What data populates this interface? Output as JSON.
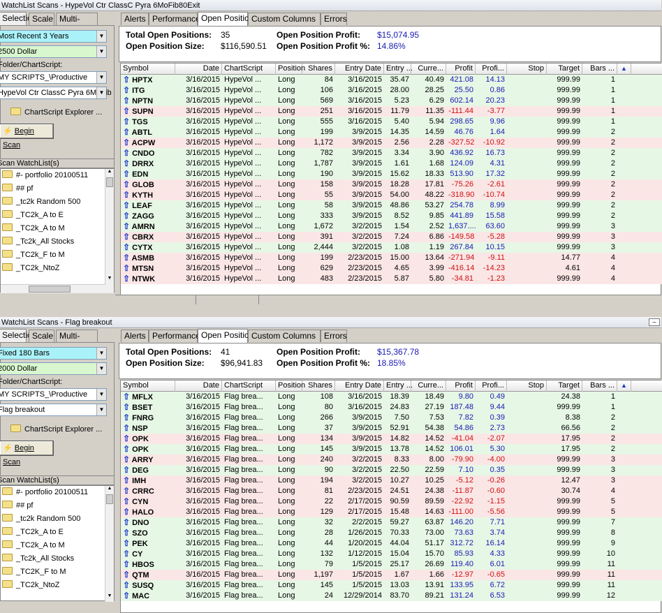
{
  "panes": [
    {
      "title": "WatchList Scans - HypeVol Ctr ClassC Pyra 6MoFib80Exit",
      "left_tabs": [
        "Selection",
        "Scale",
        "Multi-Scan"
      ],
      "bars_combo": "Most Recent 3 Years",
      "position_combo": "2500 Dollar",
      "folder_label": "Folder/ChartScript:",
      "folder_combo": "MY SCRIPTS_\\Productive",
      "script_combo": "HypeVol Ctr ClassC Pyra 6MoFib",
      "explorer_label": "ChartScript Explorer ...",
      "scan_label": "Begin Scan",
      "watchlist_header": "Scan WatchList(s)",
      "watchlists": [
        "#- portfolio 20100511",
        "## pf",
        "_tc2k Random 500",
        "_TC2k_A to E",
        "_TC2k_A to M",
        "_Tc2k_All Stocks",
        "_TC2k_F to M",
        "_TC2k_NtoZ"
      ],
      "tabs": [
        "Alerts",
        "Performance",
        "Open Positions",
        "Custom Columns",
        "Errors"
      ],
      "summary": {
        "tot_label": "Total Open Positions:",
        "tot": "35",
        "size_label": "Open Position Size:",
        "size": "$116,590.51",
        "profit_label": "Open Position Profit:",
        "profit": "$15,074.95",
        "pct_label": "Open Position Profit %:",
        "pct": "14.86%"
      },
      "columns": [
        "Symbol",
        "Date",
        "ChartScript",
        "Position",
        "Shares",
        "Entry Date",
        "Entry ...",
        "Curre...",
        "Profit",
        "Profi...",
        "Stop",
        "Target",
        "Bars ..."
      ],
      "rows": [
        [
          "HPTX",
          "3/16/2015",
          "HypeVol ...",
          "Long",
          "84",
          "3/16/2015",
          "35.47",
          "40.49",
          "421.08",
          "14.13",
          "",
          "999.99",
          "1"
        ],
        [
          "ITG",
          "3/16/2015",
          "HypeVol ...",
          "Long",
          "106",
          "3/16/2015",
          "28.00",
          "28.25",
          "25.50",
          "0.86",
          "",
          "999.99",
          "1"
        ],
        [
          "NPTN",
          "3/16/2015",
          "HypeVol ...",
          "Long",
          "569",
          "3/16/2015",
          "5.23",
          "6.29",
          "602.14",
          "20.23",
          "",
          "999.99",
          "1"
        ],
        [
          "SUPN",
          "3/16/2015",
          "HypeVol ...",
          "Long",
          "251",
          "3/16/2015",
          "11.79",
          "11.35",
          "-111.44",
          "-3.77",
          "",
          "999.99",
          "1"
        ],
        [
          "TGS",
          "3/16/2015",
          "HypeVol ...",
          "Long",
          "555",
          "3/16/2015",
          "5.40",
          "5.94",
          "298.65",
          "9.96",
          "",
          "999.99",
          "1"
        ],
        [
          "ABTL",
          "3/16/2015",
          "HypeVol ...",
          "Long",
          "199",
          "3/9/2015",
          "14.35",
          "14.59",
          "46.76",
          "1.64",
          "",
          "999.99",
          "2"
        ],
        [
          "ACPW",
          "3/16/2015",
          "HypeVol ...",
          "Long",
          "1,172",
          "3/9/2015",
          "2.56",
          "2.28",
          "-327.52",
          "-10.92",
          "",
          "999.99",
          "2"
        ],
        [
          "CNDO",
          "3/16/2015",
          "HypeVol ...",
          "Long",
          "782",
          "3/9/2015",
          "3.34",
          "3.90",
          "436.92",
          "16.73",
          "",
          "999.99",
          "2"
        ],
        [
          "DRRX",
          "3/16/2015",
          "HypeVol ...",
          "Long",
          "1,787",
          "3/9/2015",
          "1.61",
          "1.68",
          "124.09",
          "4.31",
          "",
          "999.99",
          "2"
        ],
        [
          "EDN",
          "3/16/2015",
          "HypeVol ...",
          "Long",
          "190",
          "3/9/2015",
          "15.62",
          "18.33",
          "513.90",
          "17.32",
          "",
          "999.99",
          "2"
        ],
        [
          "GLOB",
          "3/16/2015",
          "HypeVol ...",
          "Long",
          "158",
          "3/9/2015",
          "18.28",
          "17.81",
          "-75.26",
          "-2.61",
          "",
          "999.99",
          "2"
        ],
        [
          "KYTH",
          "3/16/2015",
          "HypeVol ...",
          "Long",
          "55",
          "3/9/2015",
          "54.00",
          "48.22",
          "-318.90",
          "-10.74",
          "",
          "999.99",
          "2"
        ],
        [
          "LEAF",
          "3/16/2015",
          "HypeVol ...",
          "Long",
          "58",
          "3/9/2015",
          "48.86",
          "53.27",
          "254.78",
          "8.99",
          "",
          "999.99",
          "2"
        ],
        [
          "ZAGG",
          "3/16/2015",
          "HypeVol ...",
          "Long",
          "333",
          "3/9/2015",
          "8.52",
          "9.85",
          "441.89",
          "15.58",
          "",
          "999.99",
          "2"
        ],
        [
          "AMRN",
          "3/16/2015",
          "HypeVol ...",
          "Long",
          "1,672",
          "3/2/2015",
          "1.54",
          "2.52",
          "1,637....",
          "63.60",
          "",
          "999.99",
          "3"
        ],
        [
          "CBRX",
          "3/16/2015",
          "HypeVol ...",
          "Long",
          "391",
          "3/2/2015",
          "7.24",
          "6.86",
          "-149.58",
          "-5.28",
          "",
          "999.99",
          "3"
        ],
        [
          "CYTX",
          "3/16/2015",
          "HypeVol ...",
          "Long",
          "2,444",
          "3/2/2015",
          "1.08",
          "1.19",
          "267.84",
          "10.15",
          "",
          "999.99",
          "3"
        ],
        [
          "ASMB",
          "3/16/2015",
          "HypeVol ...",
          "Long",
          "199",
          "2/23/2015",
          "15.00",
          "13.64",
          "-271.94",
          "-9.11",
          "",
          "14.77",
          "4"
        ],
        [
          "MTSN",
          "3/16/2015",
          "HypeVol ...",
          "Long",
          "629",
          "2/23/2015",
          "4.65",
          "3.99",
          "-416.14",
          "-14.23",
          "",
          "4.61",
          "4"
        ],
        [
          "NTWK",
          "3/16/2015",
          "HypeVol ...",
          "Long",
          "483",
          "2/23/2015",
          "5.87",
          "5.80",
          "-34.81",
          "-1.23",
          "",
          "999.99",
          "4"
        ]
      ]
    },
    {
      "title": "WatchList Scans - Flag breakout",
      "left_tabs": [
        "Selection",
        "Scale",
        "Multi-Scan"
      ],
      "bars_combo": "Fixed 180 Bars",
      "position_combo": "2000 Dollar",
      "folder_label": "Folder/ChartScript:",
      "folder_combo": "MY SCRIPTS_\\Productive",
      "script_combo": "Flag breakout",
      "explorer_label": "ChartScript Explorer ...",
      "scan_label": "Begin Scan",
      "watchlist_header": "Scan WatchList(s)",
      "watchlists": [
        "#- portfolio 20100511",
        "## pf",
        "_tc2k Random 500",
        "_TC2k_A to E",
        "_TC2k_A to M",
        "_Tc2k_All Stocks",
        "_TC2K_F to M",
        "_TC2k_NtoZ"
      ],
      "tabs": [
        "Alerts",
        "Performance",
        "Open Positions",
        "Custom Columns",
        "Errors"
      ],
      "summary": {
        "tot_label": "Total Open Positions:",
        "tot": "41",
        "size_label": "Open Position Size:",
        "size": "$96,941.83",
        "profit_label": "Open Position Profit:",
        "profit": "$15,367.78",
        "pct_label": "Open Position Profit %:",
        "pct": "18.85%"
      },
      "columns": [
        "Symbol",
        "Date",
        "ChartScript",
        "Position",
        "Shares",
        "Entry Date",
        "Entry ...",
        "Curre...",
        "Profit",
        "Profi...",
        "Stop",
        "Target",
        "Bars ..."
      ],
      "rows": [
        [
          "MFLX",
          "3/16/2015",
          "Flag brea...",
          "Long",
          "108",
          "3/16/2015",
          "18.39",
          "18.49",
          "9.80",
          "0.49",
          "",
          "24.38",
          "1"
        ],
        [
          "BSET",
          "3/16/2015",
          "Flag brea...",
          "Long",
          "80",
          "3/16/2015",
          "24.83",
          "27.19",
          "187.48",
          "9.44",
          "",
          "999.99",
          "1"
        ],
        [
          "FNRG",
          "3/16/2015",
          "Flag brea...",
          "Long",
          "266",
          "3/9/2015",
          "7.50",
          "7.53",
          "7.82",
          "0.39",
          "",
          "8.38",
          "2"
        ],
        [
          "NSP",
          "3/16/2015",
          "Flag brea...",
          "Long",
          "37",
          "3/9/2015",
          "52.91",
          "54.38",
          "54.86",
          "2.73",
          "",
          "66.56",
          "2"
        ],
        [
          "OPK",
          "3/16/2015",
          "Flag brea...",
          "Long",
          "134",
          "3/9/2015",
          "14.82",
          "14.52",
          "-41.04",
          "-2.07",
          "",
          "17.95",
          "2"
        ],
        [
          "OPK",
          "3/16/2015",
          "Flag brea...",
          "Long",
          "145",
          "3/9/2015",
          "13.78",
          "14.52",
          "106.01",
          "5.30",
          "",
          "17.95",
          "2"
        ],
        [
          "ARRY",
          "3/16/2015",
          "Flag brea...",
          "Long",
          "240",
          "3/2/2015",
          "8.33",
          "8.00",
          "-79.90",
          "-4.00",
          "",
          "999.99",
          "3"
        ],
        [
          "DEG",
          "3/16/2015",
          "Flag brea...",
          "Long",
          "90",
          "3/2/2015",
          "22.50",
          "22.59",
          "7.10",
          "0.35",
          "",
          "999.99",
          "3"
        ],
        [
          "IMH",
          "3/16/2015",
          "Flag brea...",
          "Long",
          "194",
          "3/2/2015",
          "10.27",
          "10.25",
          "-5.12",
          "-0.26",
          "",
          "12.47",
          "3"
        ],
        [
          "CRRC",
          "3/16/2015",
          "Flag brea...",
          "Long",
          "81",
          "2/23/2015",
          "24.51",
          "24.38",
          "-11.87",
          "-0.60",
          "",
          "30.74",
          "4"
        ],
        [
          "CYN",
          "3/16/2015",
          "Flag brea...",
          "Long",
          "22",
          "2/17/2015",
          "90.59",
          "89.59",
          "-22.92",
          "-1.15",
          "",
          "999.99",
          "5"
        ],
        [
          "HALO",
          "3/16/2015",
          "Flag brea...",
          "Long",
          "129",
          "2/17/2015",
          "15.48",
          "14.63",
          "-111.00",
          "-5.56",
          "",
          "999.99",
          "5"
        ],
        [
          "DNO",
          "3/16/2015",
          "Flag brea...",
          "Long",
          "32",
          "2/2/2015",
          "59.27",
          "63.87",
          "146.20",
          "7.71",
          "",
          "999.99",
          "7"
        ],
        [
          "SZO",
          "3/16/2015",
          "Flag brea...",
          "Long",
          "28",
          "1/26/2015",
          "70.33",
          "73.00",
          "73.63",
          "3.74",
          "",
          "999.99",
          "8"
        ],
        [
          "PEK",
          "3/16/2015",
          "Flag brea...",
          "Long",
          "44",
          "1/20/2015",
          "44.04",
          "51.17",
          "312.72",
          "16.14",
          "",
          "999.99",
          "9"
        ],
        [
          "CY",
          "3/16/2015",
          "Flag brea...",
          "Long",
          "132",
          "1/12/2015",
          "15.04",
          "15.70",
          "85.93",
          "4.33",
          "",
          "999.99",
          "10"
        ],
        [
          "HBOS",
          "3/16/2015",
          "Flag brea...",
          "Long",
          "79",
          "1/5/2015",
          "25.17",
          "26.69",
          "119.40",
          "6.01",
          "",
          "999.99",
          "11"
        ],
        [
          "QTM",
          "3/16/2015",
          "Flag brea...",
          "Long",
          "1,197",
          "1/5/2015",
          "1.67",
          "1.66",
          "-12.97",
          "-0.65",
          "",
          "999.99",
          "11"
        ],
        [
          "SUSQ",
          "3/16/2015",
          "Flag brea...",
          "Long",
          "145",
          "1/5/2015",
          "13.03",
          "13.91",
          "133.95",
          "6.72",
          "",
          "999.99",
          "11"
        ],
        [
          "MAC",
          "3/16/2015",
          "Flag brea...",
          "Long",
          "24",
          "12/29/2014",
          "83.70",
          "89.21",
          "131.24",
          "6.53",
          "",
          "999.99",
          "12"
        ]
      ]
    }
  ]
}
